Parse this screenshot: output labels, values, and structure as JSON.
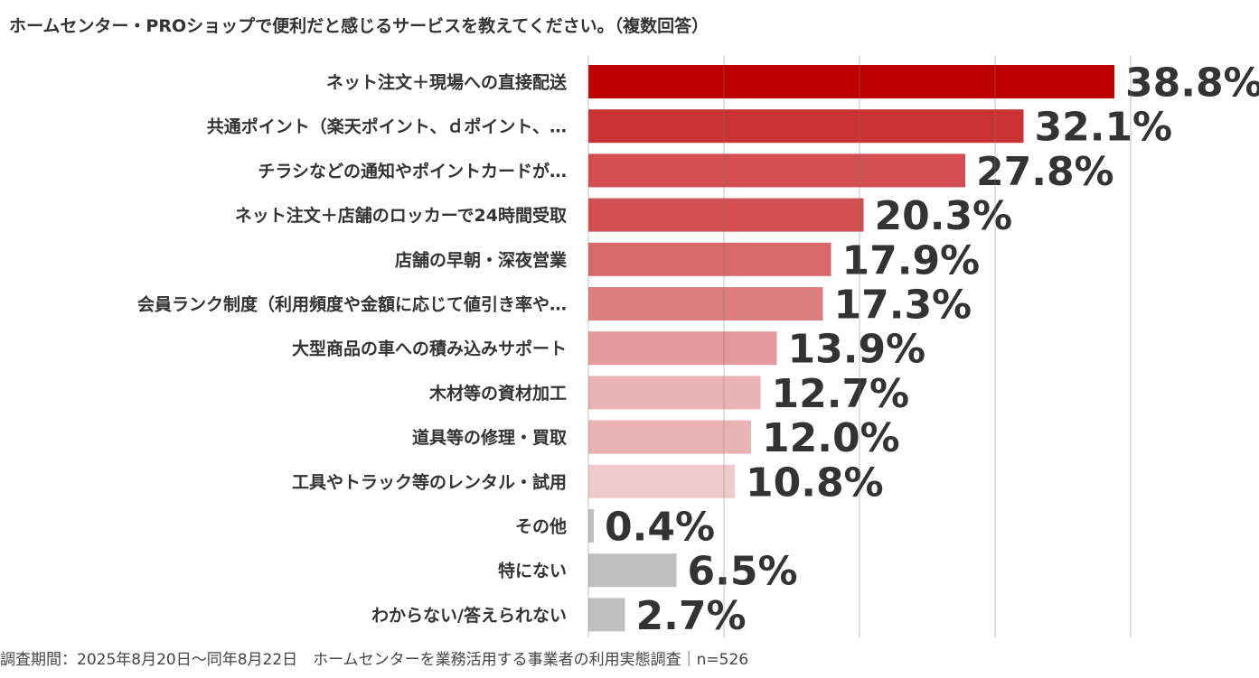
{
  "chart_data": {
    "type": "bar",
    "orientation": "horizontal",
    "title": "ホームセンター・PROショップで便利だと感じるサービスを教えてください。（複数回答）",
    "categories": [
      "ネット注文＋現場への直接配送",
      "共通ポイント（楽天ポイント、ｄポイント、…",
      "チラシなどの通知やポイントカードが…",
      "ネット注文＋店舗のロッカーで24時間受取",
      "店舗の早朝・深夜営業",
      "会員ランク制度（利用頻度や金額に応じて値引き率や…",
      "大型商品の車への積み込みサポート",
      "木材等の資材加工",
      "道具等の修理・買取",
      "工具やトラック等のレンタル・試用",
      "その他",
      "特にない",
      "わからない/答えられない"
    ],
    "values": [
      38.8,
      32.1,
      27.8,
      20.3,
      17.9,
      17.3,
      13.9,
      12.7,
      12.0,
      10.8,
      0.4,
      6.5,
      2.7
    ],
    "value_labels": [
      "38.8%",
      "32.1%",
      "27.8%",
      "20.3%",
      "17.9%",
      "17.3%",
      "13.9%",
      "12.7%",
      "12.0%",
      "10.8%",
      "0.4%",
      "6.5%",
      "2.7%"
    ],
    "colors": [
      "#c00000",
      "#cb3234",
      "#d34e50",
      "#d34e50",
      "#d9686a",
      "#de7f7f",
      "#e49899",
      "#eab3b3",
      "#eab3b3",
      "#f0cacb",
      "#bfbfbf",
      "#bfbfbf",
      "#bfbfbf"
    ],
    "xlim": [
      0,
      40
    ],
    "grid": true,
    "legend": "none"
  },
  "footer": "調査期間：2025年8月20日～同年8月22日　ホームセンターを業務活用する事業者の利用実態調査｜n=526"
}
